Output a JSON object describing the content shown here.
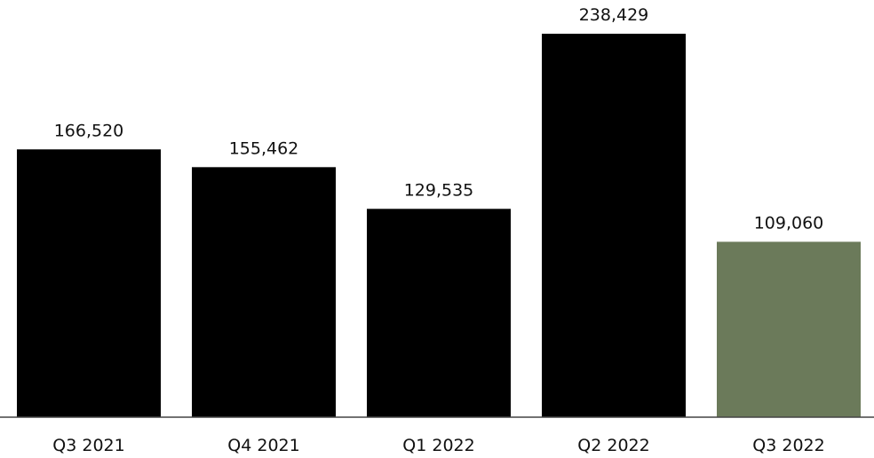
{
  "chart_data": {
    "type": "bar",
    "title": "",
    "xlabel": "",
    "ylabel": "",
    "categories": [
      "Q3 2021",
      "Q4 2021",
      "Q1 2022",
      "Q2 2022",
      "Q3 2022"
    ],
    "values": [
      166520,
      155462,
      129535,
      238429,
      109060
    ],
    "value_labels": [
      "166,520",
      "155,462",
      "129,535",
      "238,429",
      "109,060"
    ],
    "bar_colors": [
      "#000000",
      "#000000",
      "#000000",
      "#000000",
      "#6b7a5a"
    ],
    "ylim": [
      0,
      238429
    ],
    "grid": false,
    "legend": "none"
  }
}
